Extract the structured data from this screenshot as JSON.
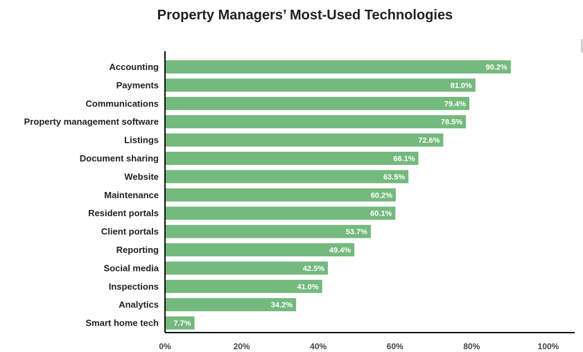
{
  "colors": {
    "bar": "#74b97d",
    "axis": "#111111",
    "label": "#222222",
    "value_text": "#ffffff"
  },
  "chart_data": {
    "type": "bar",
    "orientation": "horizontal",
    "title": "Property Managers’ Most-Used Technologies",
    "categories": [
      "Accounting",
      "Payments",
      "Communications",
      "Property management software",
      "Listings",
      "Document sharing",
      "Website",
      "Maintenance",
      "Resident portals",
      "Client portals",
      "Reporting",
      "Social media",
      "Inspections",
      "Analytics",
      "Smart home tech"
    ],
    "values": [
      90.2,
      81.0,
      79.4,
      78.5,
      72.6,
      66.1,
      63.5,
      60.2,
      60.1,
      53.7,
      49.4,
      42.5,
      41.0,
      34.2,
      7.7
    ],
    "value_labels": [
      "90.2%",
      "81.0%",
      "79.4%",
      "78.5%",
      "72.6%",
      "66.1%",
      "63.5%",
      "60.2%",
      "60.1%",
      "53.7%",
      "49.4%",
      "42.5%",
      "41.0%",
      "34.2%",
      "7.7%"
    ],
    "xlim": [
      0,
      100
    ],
    "xticks": [
      0,
      20,
      40,
      60,
      80,
      100
    ],
    "xtick_labels": [
      "0%",
      "20%",
      "40%",
      "60%",
      "80%",
      "100%"
    ],
    "grid": false,
    "legend": "none"
  }
}
